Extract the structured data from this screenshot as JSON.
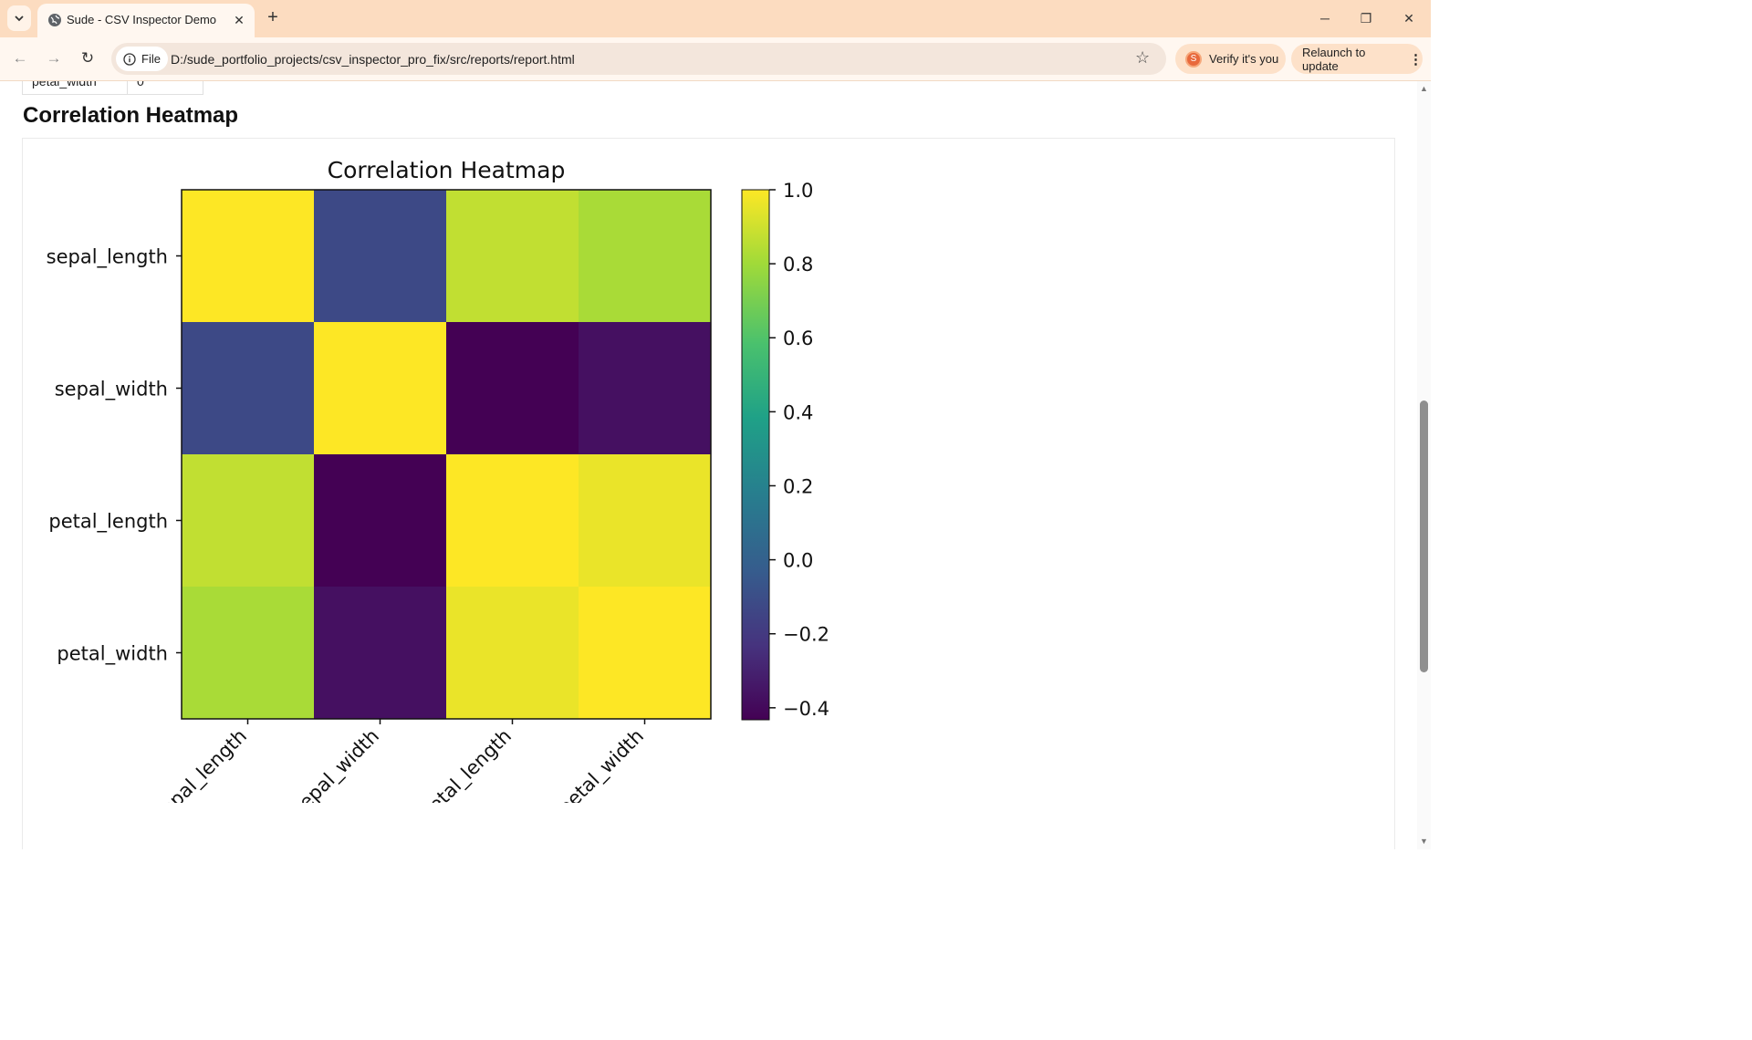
{
  "browser": {
    "tab_title": "Sude - CSV Inspector Demo",
    "file_chip_label": "File",
    "url": "D:/sude_portfolio_projects/csv_inspector_pro_fix/src/reports/report.html",
    "verify_label": "Verify it's you",
    "avatar_letter": "S",
    "relaunch_label": "Relaunch to update"
  },
  "page": {
    "prev_row_label": "petal_width",
    "prev_row_value": "0",
    "section_title": "Correlation Heatmap"
  },
  "chart_data": {
    "type": "heatmap",
    "title": "Correlation Heatmap",
    "x_labels": [
      "sepal_length",
      "sepal_width",
      "petal_length",
      "petal_width"
    ],
    "y_labels": [
      "sepal_length",
      "sepal_width",
      "petal_length",
      "petal_width"
    ],
    "values": [
      [
        1.0,
        -0.12,
        0.87,
        0.82
      ],
      [
        -0.12,
        1.0,
        -0.43,
        -0.37
      ],
      [
        0.87,
        -0.43,
        1.0,
        0.96
      ],
      [
        0.82,
        -0.37,
        0.96,
        1.0
      ]
    ],
    "colormap": "viridis",
    "vmin": -0.43,
    "vmax": 1.0,
    "colorbar_ticks": [
      "1.0",
      "0.8",
      "0.6",
      "0.4",
      "0.2",
      "0.0",
      "−0.2",
      "−0.4"
    ],
    "colorbar_tick_values": [
      1.0,
      0.8,
      0.6,
      0.4,
      0.2,
      0.0,
      -0.2,
      -0.4
    ]
  }
}
